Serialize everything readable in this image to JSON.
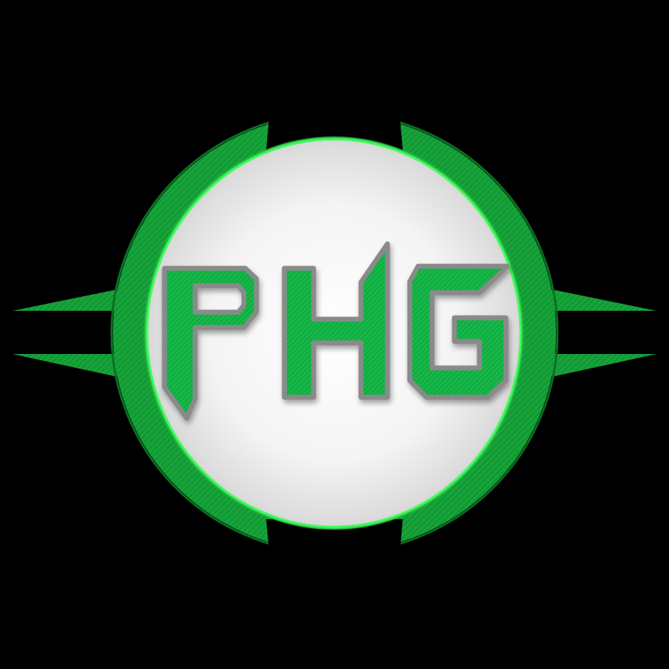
{
  "logo": {
    "text": "PHG",
    "letters": [
      "P",
      "H",
      "G"
    ]
  },
  "colors": {
    "background": "#000000",
    "ring_green": "#16a33a",
    "ring_dark": "#0e7a28",
    "letter_green": "#12b444",
    "letter_outline": "#8a8a8a",
    "glow_green": "#3cff5a",
    "sphere_light": "#ffffff",
    "sphere_shadow": "#c9c9c9"
  },
  "icons": [
    "logo-emblem"
  ]
}
